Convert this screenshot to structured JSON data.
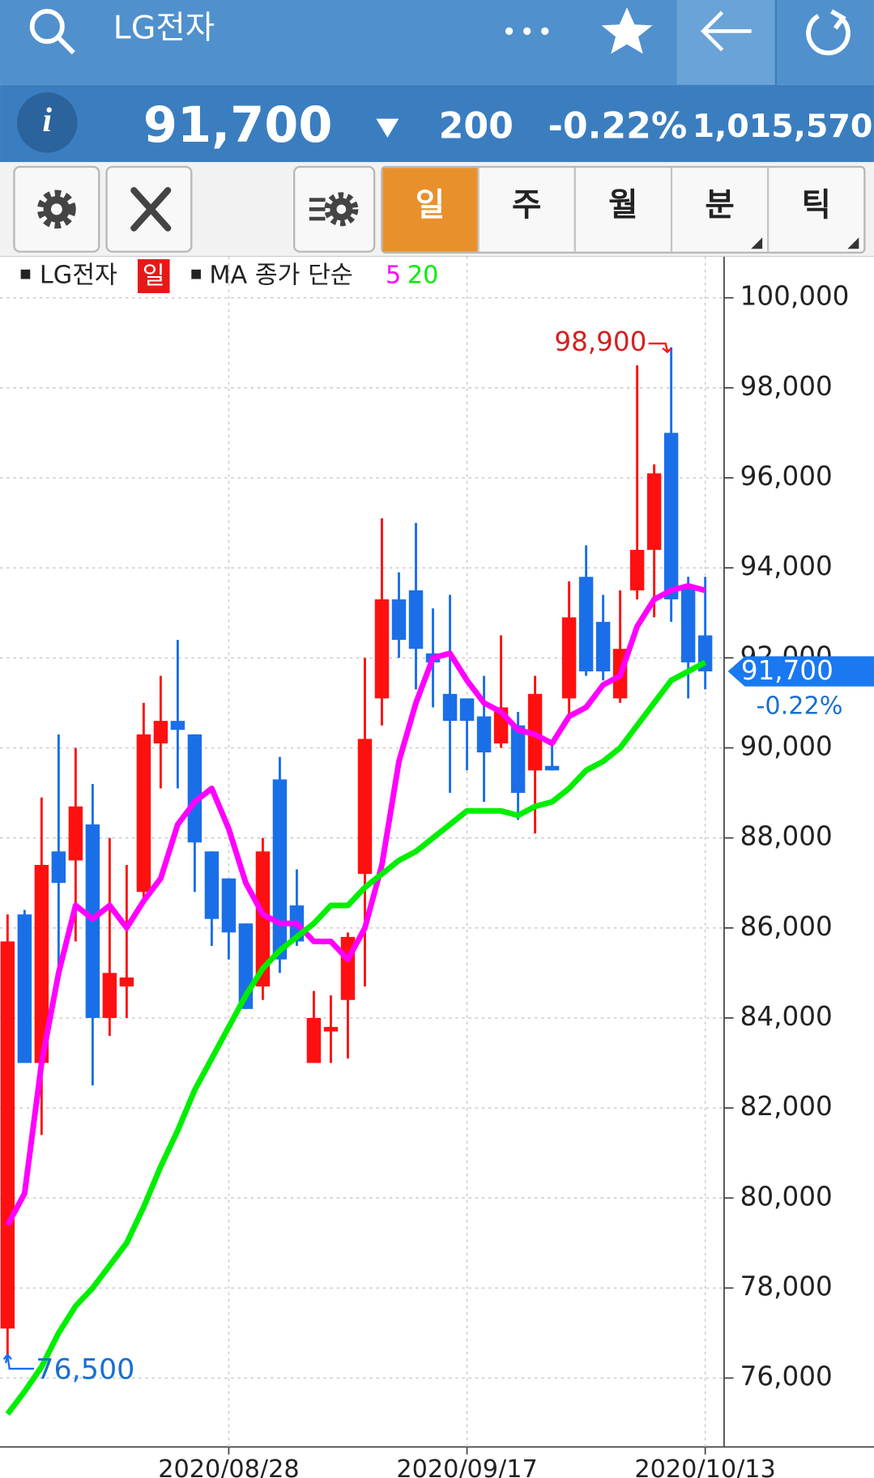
{
  "header": {
    "title": "LG전자"
  },
  "quote": {
    "price": "91,700",
    "change": "200",
    "change_pct": "-0.22%",
    "volume": "1,015,570"
  },
  "toolbar": {
    "tabs": [
      "일",
      "주",
      "월",
      "분",
      "틱"
    ]
  },
  "chart_data": {
    "type": "candlestick",
    "legend": {
      "period": "일",
      "ma_label": "MA 종가 단순"
    },
    "categories": [
      null,
      null,
      null,
      null,
      null,
      null,
      null,
      null,
      null,
      null,
      null,
      null,
      null,
      "2020/08/28",
      null,
      null,
      null,
      null,
      null,
      null,
      null,
      null,
      null,
      null,
      null,
      null,
      null,
      "2020/09/17",
      null,
      null,
      null,
      null,
      null,
      null,
      null,
      null,
      null,
      null,
      null,
      null,
      null,
      "2020/10/13"
    ],
    "up_color": "#ff1010",
    "down_color": "#1a6fe8",
    "series": [
      {
        "name": "LG전자",
        "type": "candlestick",
        "open": [
          77100,
          86300,
          83000,
          87700,
          87500,
          88300,
          84000,
          84700,
          86800,
          90100,
          90600,
          90300,
          87700,
          87100,
          86100,
          84700,
          89300,
          86500,
          83000,
          83700,
          84400,
          87200,
          91100,
          93300,
          93500,
          92100,
          91200,
          91100,
          90700,
          90100,
          90500,
          89500,
          89600,
          91100,
          93800,
          92800,
          91100,
          93500,
          94400,
          97000,
          93600,
          92500
        ],
        "high": [
          86300,
          86400,
          88900,
          90300,
          90000,
          89200,
          88000,
          87400,
          91000,
          91600,
          92400,
          90300,
          87700,
          87100,
          86100,
          88000,
          89800,
          87300,
          84600,
          84500,
          85900,
          92000,
          95100,
          93900,
          95000,
          93100,
          93400,
          91100,
          91600,
          92500,
          90800,
          91600,
          90100,
          93700,
          94500,
          93400,
          93500,
          98500,
          96300,
          98900,
          93800,
          93800
        ],
        "low": [
          76500,
          83000,
          81400,
          85000,
          85700,
          82500,
          83600,
          84000,
          86600,
          89100,
          89100,
          86800,
          85600,
          85300,
          84200,
          84400,
          85000,
          85600,
          83000,
          83000,
          83100,
          84700,
          90500,
          92000,
          91300,
          90900,
          89000,
          89500,
          88800,
          90000,
          88400,
          88100,
          89500,
          90600,
          91600,
          91500,
          91000,
          93300,
          92900,
          92800,
          91100,
          91300
        ],
        "close": [
          85700,
          83000,
          87400,
          87000,
          88700,
          84000,
          85000,
          84900,
          90300,
          90600,
          90400,
          87900,
          86200,
          85900,
          84200,
          87700,
          85300,
          85700,
          84000,
          83800,
          85800,
          90200,
          93300,
          92400,
          92200,
          91900,
          90600,
          90600,
          89900,
          90900,
          89000,
          91200,
          89500,
          92900,
          91700,
          91700,
          92200,
          94400,
          96100,
          93300,
          91900,
          91700
        ]
      },
      {
        "name": "5",
        "type": "line",
        "color": "#ff00ff",
        "values": [
          79400,
          80100,
          83000,
          85000,
          86500,
          86200,
          86500,
          86000,
          86600,
          87100,
          88300,
          88800,
          89100,
          88200,
          87000,
          86300,
          86100,
          86100,
          85700,
          85700,
          85300,
          86000,
          87400,
          89700,
          91000,
          92000,
          92100,
          91500,
          91000,
          90800,
          90400,
          90300,
          90100,
          90700,
          90900,
          91400,
          91600,
          92700,
          93300,
          93500,
          93600,
          93500
        ]
      },
      {
        "name": "20",
        "type": "line",
        "color": "#00ee00",
        "values": [
          75200,
          75700,
          76250,
          77000,
          77600,
          78000,
          78500,
          79000,
          79800,
          80700,
          81500,
          82400,
          83100,
          83800,
          84500,
          85100,
          85500,
          85800,
          86100,
          86500,
          86500,
          86900,
          87200,
          87500,
          87700,
          88000,
          88300,
          88600,
          88600,
          88600,
          88500,
          88700,
          88800,
          89100,
          89500,
          89700,
          90000,
          90500,
          91000,
          91500,
          91700,
          91900
        ]
      }
    ],
    "ylim": [
      74470,
      100920
    ],
    "yticks": [
      {
        "value": 76000,
        "label": "76,000"
      },
      {
        "value": 78000,
        "label": "78,000"
      },
      {
        "value": 80000,
        "label": "80,000"
      },
      {
        "value": 82000,
        "label": "82,000"
      },
      {
        "value": 84000,
        "label": "84,000"
      },
      {
        "value": 86000,
        "label": "86,000"
      },
      {
        "value": 88000,
        "label": "88,000"
      },
      {
        "value": 90000,
        "label": "90,000"
      },
      {
        "value": 92000,
        "label": "92,000"
      },
      {
        "value": 94000,
        "label": "94,000"
      },
      {
        "value": 96000,
        "label": "96,000"
      },
      {
        "value": 98000,
        "label": "98,000"
      },
      {
        "value": 100000,
        "label": "100,000"
      }
    ],
    "grid": true,
    "high_marker": {
      "value": 98900,
      "label": "98,900"
    },
    "low_marker": {
      "value": 76500,
      "label": "76,500"
    },
    "last_price": {
      "value": 91700,
      "label": "91,700",
      "change": "-0.22%"
    }
  }
}
